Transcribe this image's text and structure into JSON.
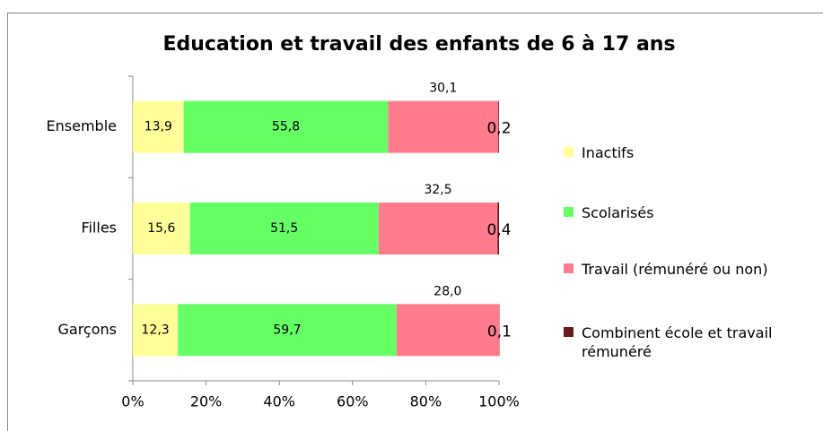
{
  "chart_data": {
    "type": "stacked_barh",
    "title": "Education et travail des enfants de 6 à 17 ans",
    "categories": [
      "Ensemble",
      "Filles",
      "Garçons"
    ],
    "series": [
      {
        "name": "Inactifs",
        "color": "#ffff99",
        "values": [
          13.9,
          15.6,
          12.3
        ],
        "value_labels": [
          "13,9",
          "15,6",
          "12,3"
        ]
      },
      {
        "name": "Scolarisés",
        "color": "#66ff66",
        "values": [
          55.8,
          51.5,
          59.7
        ],
        "value_labels": [
          "55,8",
          "51,5",
          "59,7"
        ]
      },
      {
        "name": "Travail (rémunéré ou non)",
        "color": "#ff7c8c",
        "values": [
          30.1,
          32.5,
          28.0
        ],
        "value_labels": [
          "30,1",
          "32,5",
          "28,0"
        ]
      },
      {
        "name": "Combinent école et travail rémunéré",
        "color": "#6b1a1a",
        "values": [
          0.2,
          0.4,
          0.1
        ],
        "value_labels": [
          "0,2",
          "0,4",
          "0,1"
        ]
      }
    ],
    "xlim": [
      0,
      100
    ],
    "xticks": [
      {
        "value": 0,
        "label": "0%"
      },
      {
        "value": 20,
        "label": "20%"
      },
      {
        "value": 40,
        "label": "40%"
      },
      {
        "value": 60,
        "label": "60%"
      },
      {
        "value": 80,
        "label": "80%"
      },
      {
        "value": 100,
        "label": "100%"
      }
    ],
    "legend": "right"
  }
}
